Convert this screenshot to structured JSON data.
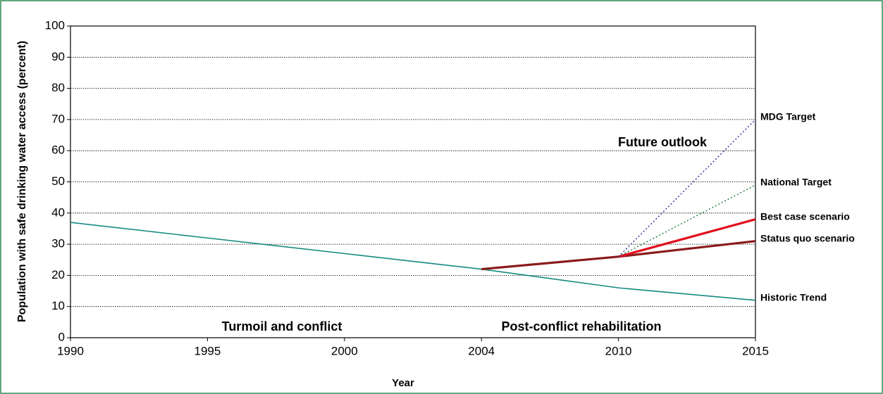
{
  "chart_data": {
    "type": "line",
    "x_label": "Year",
    "y_label": "Population with safe drinking water access (percent)",
    "categories": [
      "1990",
      "1995",
      "2000",
      "2004",
      "2010",
      "2015"
    ],
    "series": [
      {
        "name": "Historic Trend",
        "color": "#138a80",
        "style": "thin",
        "values": [
          37,
          32,
          27,
          22,
          16,
          12
        ]
      },
      {
        "name": "Status quo scenario",
        "color": "#8b1a1a",
        "style": "bold",
        "values": [
          null,
          null,
          null,
          22,
          26,
          31
        ]
      },
      {
        "name": "Best case scenario",
        "color": "#e0101e",
        "style": "bold",
        "values": [
          null,
          null,
          null,
          null,
          26,
          38
        ]
      },
      {
        "name": "National Target",
        "color": "#1a7a3a",
        "style": "dotted",
        "values": [
          null,
          null,
          null,
          null,
          26,
          49
        ]
      },
      {
        "name": "MDG Target",
        "color": "#2a2a8a",
        "style": "dotted",
        "values": [
          null,
          null,
          null,
          null,
          26,
          70
        ]
      }
    ],
    "annotations": [
      "Future outlook",
      "Turmoil and conflict",
      "Post-conflict rehabilitation"
    ],
    "ylim": [
      0,
      100
    ],
    "yticks": [
      0,
      10,
      20,
      30,
      40,
      50,
      60,
      70,
      80,
      90,
      100
    ],
    "grid": true
  }
}
